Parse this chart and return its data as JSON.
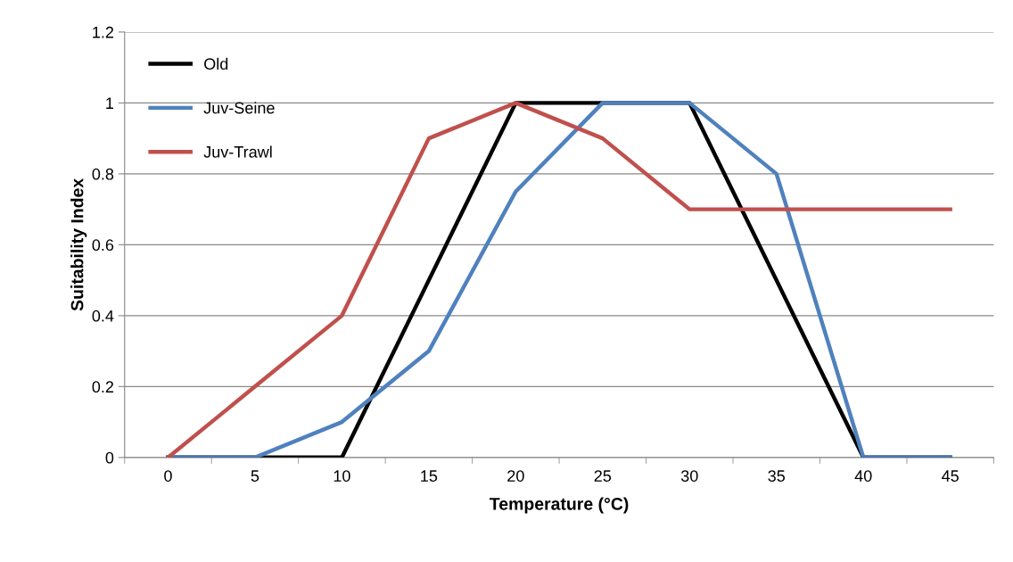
{
  "chart_data": {
    "type": "line",
    "xlabel": "Temperature (°C)",
    "ylabel": "Suitability Index",
    "categories": [
      "0",
      "5",
      "10",
      "15",
      "20",
      "25",
      "30",
      "35",
      "40",
      "45"
    ],
    "series": [
      {
        "name": "Old",
        "color": "#000000",
        "values": [
          0,
          0,
          0,
          0.5,
          1,
          1,
          1,
          0.5,
          0,
          0
        ]
      },
      {
        "name": "Juv-Seine",
        "color": "#4f81bd",
        "values": [
          0,
          0,
          0.1,
          0.3,
          0.75,
          1,
          1,
          0.8,
          0,
          0
        ]
      },
      {
        "name": "Juv-Trawl",
        "color": "#c0504d",
        "values": [
          0,
          0.2,
          0.4,
          0.9,
          1,
          0.9,
          0.7,
          0.7,
          0.7,
          0.7
        ]
      }
    ],
    "ylim": [
      0,
      1.2
    ],
    "yticks": [
      0,
      0.2,
      0.4,
      0.6,
      0.8,
      1,
      1.2
    ],
    "grid": "y",
    "legend": "top left",
    "marker": "none",
    "line_style": "solid"
  }
}
